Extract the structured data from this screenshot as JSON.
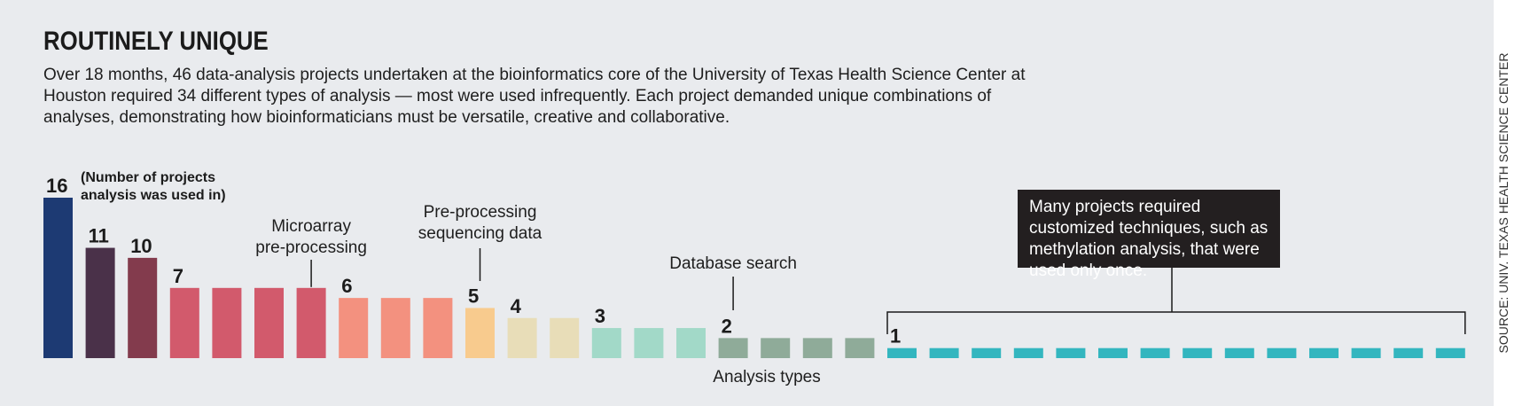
{
  "title": "ROUTINELY UNIQUE",
  "description": "Over 18 months, 46 data-analysis projects undertaken at the bioinformatics core of the University of Texas Health Science Center at Houston required 34 different types of analysis — most were used infrequently. Each project demanded unique combinations of analyses, demonstrating how bioinformaticians must be versatile, creative and collaborative.",
  "source": "SOURCE: UNIV. TEXAS HEALTH SCIENCE CENTER",
  "callout": "Many projects required customized techniques, such as methylation analysis, that were used only once.",
  "chart_data": {
    "type": "bar",
    "xlabel": "Analysis types",
    "ylabel": "",
    "ylim": [
      0,
      16
    ],
    "values": [
      16,
      11,
      10,
      7,
      7,
      7,
      7,
      6,
      6,
      6,
      5,
      4,
      4,
      3,
      3,
      3,
      2,
      2,
      2,
      2,
      1,
      1,
      1,
      1,
      1,
      1,
      1,
      1,
      1,
      1,
      1,
      1,
      1,
      1
    ],
    "colors": [
      "#1d3a73",
      "#4a3149",
      "#833b4d",
      "#d25a6c",
      "#d25a6c",
      "#d25a6c",
      "#d25a6c",
      "#f3917f",
      "#f3917f",
      "#f3917f",
      "#f8cb8e",
      "#e8ddb8",
      "#e8ddb8",
      "#a2d9c8",
      "#a2d9c8",
      "#a2d9c8",
      "#8fab99",
      "#8fab99",
      "#8fab99",
      "#8fab99",
      "#33b6bf",
      "#33b6bf",
      "#33b6bf",
      "#33b6bf",
      "#33b6bf",
      "#33b6bf",
      "#33b6bf",
      "#33b6bf",
      "#33b6bf",
      "#33b6bf",
      "#33b6bf",
      "#33b6bf",
      "#33b6bf",
      "#33b6bf"
    ],
    "value_labels": [
      {
        "index": 0,
        "text": "16"
      },
      {
        "index": 1,
        "text": "11"
      },
      {
        "index": 2,
        "text": "10"
      },
      {
        "index": 3,
        "text": "7"
      },
      {
        "index": 7,
        "text": "6"
      },
      {
        "index": 10,
        "text": "5"
      },
      {
        "index": 11,
        "text": "4"
      },
      {
        "index": 13,
        "text": "3"
      },
      {
        "index": 16,
        "text": "2"
      },
      {
        "index": 20,
        "text": "1"
      }
    ],
    "legend_note": [
      "(Number of projects",
      "analysis was used in)"
    ],
    "annotations": [
      {
        "index": 6,
        "lines": [
          "Microarray",
          "pre-processing"
        ]
      },
      {
        "index": 10,
        "lines": [
          "Pre-processing",
          "sequencing data"
        ]
      },
      {
        "index": 16,
        "lines": [
          "Database search"
        ]
      }
    ],
    "bracket": {
      "from_index": 20,
      "to_index": 33
    }
  }
}
